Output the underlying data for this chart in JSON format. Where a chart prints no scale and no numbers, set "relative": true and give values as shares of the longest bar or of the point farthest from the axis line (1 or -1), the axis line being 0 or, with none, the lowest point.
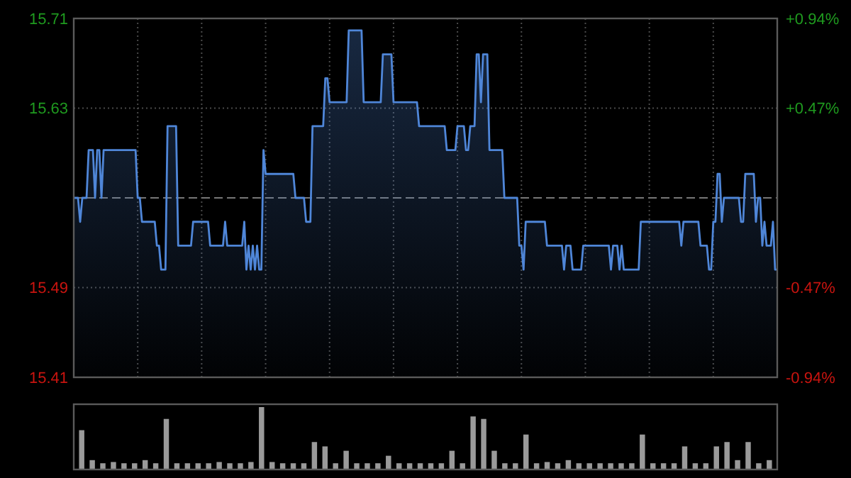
{
  "chart_data": [
    {
      "type": "area",
      "color": "#4f86d8",
      "categories": [
        null,
        null,
        null,
        null,
        null,
        null,
        null,
        null,
        null,
        null,
        null,
        null,
        null,
        null,
        null,
        null,
        null,
        null,
        null,
        null,
        null,
        null,
        null,
        null,
        null,
        null,
        null,
        null,
        null,
        null,
        null,
        null,
        null,
        null,
        null,
        null,
        null,
        null,
        null,
        null,
        null,
        null,
        null,
        null,
        null,
        null,
        null,
        null,
        null,
        null,
        null,
        null,
        null,
        null,
        null,
        null,
        null,
        null,
        null,
        null,
        null,
        null,
        null,
        null,
        null,
        null,
        null,
        null,
        null,
        null,
        null,
        null,
        null,
        null,
        null,
        null,
        null,
        null,
        null,
        null,
        null,
        null,
        null,
        null,
        null,
        null,
        null,
        null,
        null,
        null,
        null,
        null,
        null,
        null,
        null,
        null,
        null,
        null,
        null,
        null,
        null,
        null,
        null,
        null,
        null,
        null,
        null,
        null,
        null,
        null,
        null,
        null,
        null,
        null,
        null,
        null,
        null,
        null,
        null,
        null,
        null,
        null,
        null,
        null,
        null,
        null,
        null,
        null,
        null,
        null,
        null,
        null,
        null,
        null,
        null,
        null,
        null,
        null,
        null,
        null,
        null,
        null,
        null,
        null,
        null,
        null,
        null,
        null,
        null,
        null,
        null,
        null,
        null,
        null,
        null,
        null,
        null,
        null,
        null,
        null,
        null,
        null,
        null,
        null,
        null,
        null,
        null,
        null,
        null,
        null,
        null,
        null,
        null,
        null,
        null,
        null,
        null,
        null,
        null,
        null,
        null,
        null,
        null,
        null,
        null,
        null,
        null,
        null,
        null,
        null,
        null,
        null,
        null,
        null,
        null,
        null,
        null,
        null,
        null,
        null,
        null,
        null,
        null,
        null,
        null,
        null,
        null,
        null,
        null,
        null,
        null,
        null,
        null,
        null,
        null,
        null,
        null,
        null,
        null,
        null,
        null,
        null,
        null,
        null,
        null,
        null,
        null,
        null,
        null,
        null,
        null,
        null,
        null,
        null,
        null,
        null,
        null,
        null,
        null,
        null,
        null,
        null,
        null,
        null,
        null,
        null,
        null,
        null,
        null,
        null,
        null,
        null,
        null,
        null,
        null,
        null,
        null,
        null,
        null,
        null,
        null,
        null,
        null,
        null,
        null,
        null,
        null,
        null,
        null,
        null,
        null,
        null,
        null,
        null,
        null,
        null,
        null,
        null,
        null,
        null,
        null,
        null,
        null,
        null,
        null,
        null,
        null,
        null,
        null,
        null,
        null,
        null,
        null,
        null,
        null,
        null,
        null,
        null,
        null,
        null,
        null,
        null,
        null,
        null,
        null,
        null,
        null,
        null,
        null,
        null,
        null,
        null,
        null,
        null,
        null,
        null,
        null,
        null,
        null,
        null,
        null,
        null,
        null,
        null,
        null,
        null,
        null,
        null,
        null,
        null,
        null
      ],
      "values": [
        15.56,
        15.56,
        15.56,
        15.54,
        15.56,
        15.56,
        15.56,
        15.6,
        15.6,
        15.6,
        15.56,
        15.6,
        15.6,
        15.56,
        15.6,
        15.6,
        15.6,
        15.6,
        15.6,
        15.6,
        15.6,
        15.6,
        15.6,
        15.6,
        15.6,
        15.6,
        15.6,
        15.6,
        15.6,
        15.6,
        15.56,
        15.56,
        15.54,
        15.54,
        15.54,
        15.54,
        15.54,
        15.54,
        15.54,
        15.52,
        15.52,
        15.5,
        15.5,
        15.5,
        15.62,
        15.62,
        15.62,
        15.62,
        15.62,
        15.52,
        15.52,
        15.52,
        15.52,
        15.52,
        15.52,
        15.52,
        15.54,
        15.54,
        15.54,
        15.54,
        15.54,
        15.54,
        15.54,
        15.54,
        15.52,
        15.52,
        15.52,
        15.52,
        15.52,
        15.52,
        15.52,
        15.54,
        15.52,
        15.52,
        15.52,
        15.52,
        15.52,
        15.52,
        15.52,
        15.52,
        15.54,
        15.5,
        15.52,
        15.5,
        15.52,
        15.5,
        15.52,
        15.5,
        15.5,
        15.6,
        15.58,
        15.58,
        15.58,
        15.58,
        15.58,
        15.58,
        15.58,
        15.58,
        15.58,
        15.58,
        15.58,
        15.58,
        15.58,
        15.58,
        15.56,
        15.56,
        15.56,
        15.56,
        15.56,
        15.54,
        15.54,
        15.54,
        15.62,
        15.62,
        15.62,
        15.62,
        15.62,
        15.62,
        15.66,
        15.66,
        15.64,
        15.64,
        15.64,
        15.64,
        15.64,
        15.64,
        15.64,
        15.64,
        15.64,
        15.7,
        15.7,
        15.7,
        15.7,
        15.7,
        15.7,
        15.7,
        15.64,
        15.64,
        15.64,
        15.64,
        15.64,
        15.64,
        15.64,
        15.64,
        15.64,
        15.68,
        15.68,
        15.68,
        15.68,
        15.68,
        15.64,
        15.64,
        15.64,
        15.64,
        15.64,
        15.64,
        15.64,
        15.64,
        15.64,
        15.64,
        15.64,
        15.64,
        15.62,
        15.62,
        15.62,
        15.62,
        15.62,
        15.62,
        15.62,
        15.62,
        15.62,
        15.62,
        15.62,
        15.62,
        15.62,
        15.6,
        15.6,
        15.6,
        15.6,
        15.6,
        15.62,
        15.62,
        15.62,
        15.62,
        15.6,
        15.6,
        15.62,
        15.62,
        15.62,
        15.68,
        15.68,
        15.64,
        15.68,
        15.68,
        15.68,
        15.6,
        15.6,
        15.6,
        15.6,
        15.6,
        15.6,
        15.6,
        15.56,
        15.56,
        15.56,
        15.56,
        15.56,
        15.56,
        15.56,
        15.52,
        15.52,
        15.5,
        15.54,
        15.54,
        15.54,
        15.54,
        15.54,
        15.54,
        15.54,
        15.54,
        15.54,
        15.54,
        15.52,
        15.52,
        15.52,
        15.52,
        15.52,
        15.52,
        15.52,
        15.52,
        15.5,
        15.52,
        15.52,
        15.52,
        15.5,
        15.5,
        15.5,
        15.5,
        15.5,
        15.52,
        15.52,
        15.52,
        15.52,
        15.52,
        15.52,
        15.52,
        15.52,
        15.52,
        15.52,
        15.52,
        15.52,
        15.52,
        15.5,
        15.52,
        15.52,
        15.52,
        15.5,
        15.52,
        15.5,
        15.5,
        15.5,
        15.5,
        15.5,
        15.5,
        15.5,
        15.5,
        15.54,
        15.54,
        15.54,
        15.54,
        15.54,
        15.54,
        15.54,
        15.54,
        15.54,
        15.54,
        15.54,
        15.54,
        15.54,
        15.54,
        15.54,
        15.54,
        15.54,
        15.54,
        15.54,
        15.52,
        15.54,
        15.54,
        15.54,
        15.54,
        15.54,
        15.54,
        15.54,
        15.54,
        15.52,
        15.52,
        15.52,
        15.52,
        15.5,
        15.5,
        15.54,
        15.54,
        15.58,
        15.58,
        15.54,
        15.56,
        15.56,
        15.56,
        15.56,
        15.56,
        15.56,
        15.56,
        15.56,
        15.54,
        15.54,
        15.58,
        15.58,
        15.58,
        15.58,
        15.58,
        15.54,
        15.56,
        15.56,
        15.52,
        15.54,
        15.52,
        15.52,
        15.52,
        15.54,
        15.5,
        15.5
      ],
      "ylim": [
        15.41,
        15.71
      ],
      "yticks": [
        15.41,
        {
          "value": 15.485,
          "label": "15.49"
        },
        {
          "value": 15.635,
          "label": "15.63"
        },
        15.71
      ],
      "y2lim": [
        -0.94,
        0.94
      ],
      "y2ticks": [
        {
          "value": -0.94,
          "label": "-0.94%"
        },
        {
          "value": -0.47,
          "label": "-0.47%"
        },
        {
          "value": 0.47,
          "label": "+0.47%"
        },
        {
          "value": 0.94,
          "label": "+0.94%"
        }
      ],
      "ref_lines": [
        {
          "axis": "y",
          "value": 15.56,
          "line_style": "dashed"
        }
      ],
      "grid": true,
      "tick_labels": "y",
      "line_style": "solid"
    },
    {
      "type": "bar",
      "relative": true,
      "color": "#9a9a9a",
      "tick_labels": false,
      "categories": [
        null,
        null,
        null,
        null,
        null,
        null,
        null,
        null,
        null,
        null,
        null,
        null,
        null,
        null,
        null,
        null,
        null,
        null,
        null,
        null,
        null,
        null,
        null,
        null,
        null,
        null,
        null,
        null,
        null,
        null,
        null,
        null,
        null,
        null,
        null,
        null,
        null,
        null,
        null,
        null,
        null,
        null,
        null,
        null,
        null,
        null,
        null,
        null,
        null,
        null,
        null,
        null,
        null,
        null,
        null,
        null,
        null,
        null,
        null,
        null,
        null,
        null,
        null,
        null,
        null,
        null
      ],
      "values": [
        0.63,
        0.15,
        0.1,
        0.12,
        0.1,
        0.1,
        0.15,
        0.1,
        0.81,
        0.1,
        0.1,
        0.1,
        0.1,
        0.12,
        0.1,
        0.1,
        0.12,
        1,
        0.12,
        0.1,
        0.1,
        0.1,
        0.44,
        0.37,
        0.1,
        0.3,
        0.1,
        0.1,
        0.1,
        0.22,
        0.1,
        0.1,
        0.1,
        0.1,
        0.1,
        0.3,
        0.1,
        0.85,
        0.81,
        0.3,
        0.1,
        0.1,
        0.56,
        0.1,
        0.12,
        0.1,
        0.15,
        0.1,
        0.1,
        0.1,
        0.1,
        0.1,
        0.1,
        0.56,
        0.1,
        0.1,
        0.1,
        0.37,
        0.1,
        0.1,
        0.37,
        0.44,
        0.15,
        0.44,
        0.1,
        0.15
      ]
    }
  ]
}
